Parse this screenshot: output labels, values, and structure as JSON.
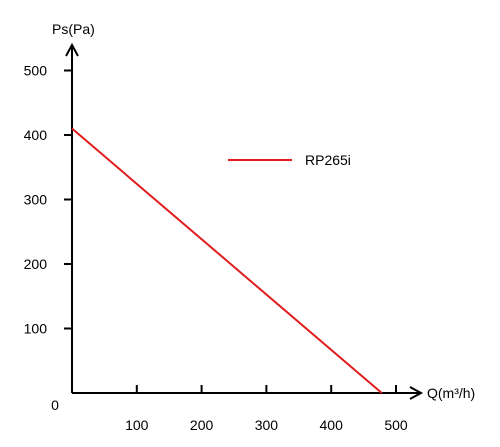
{
  "chart_data": {
    "type": "line",
    "xlabel": "Q(m³/h)",
    "ylabel": "Ps(Pa)",
    "origin_label": "0",
    "x_ticks": [
      100,
      200,
      300,
      400,
      500
    ],
    "y_ticks": [
      100,
      200,
      300,
      400,
      500
    ],
    "xlim": [
      0,
      500
    ],
    "ylim": [
      0,
      500
    ],
    "grid": false,
    "legend_position": "top-right",
    "series": [
      {
        "name": "RP265i",
        "color": "#e01c1c",
        "x": [
          0,
          478
        ],
        "y": [
          410,
          0
        ]
      }
    ]
  }
}
